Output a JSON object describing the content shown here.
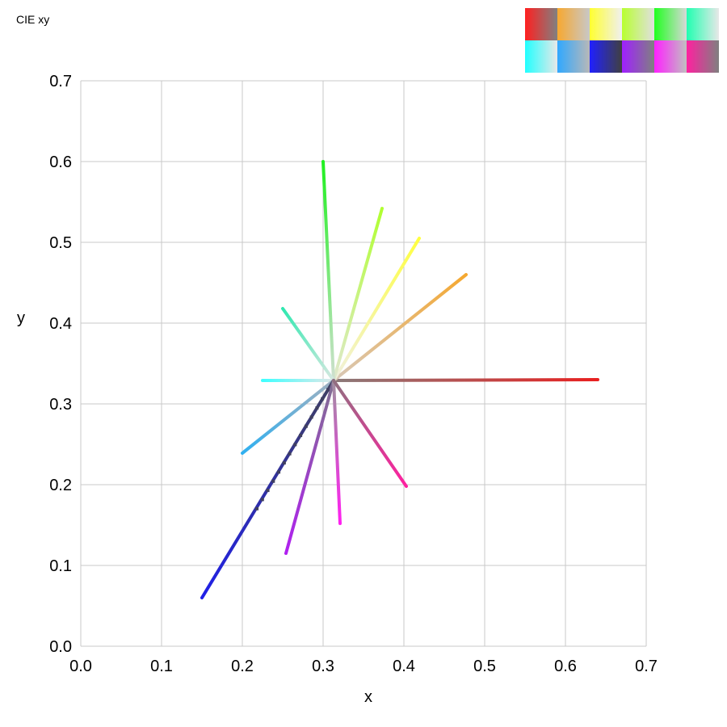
{
  "chart_data": {
    "type": "line",
    "title": "CIE xy",
    "xlabel": "x",
    "ylabel": "y",
    "xlim": [
      0.0,
      0.7
    ],
    "ylim": [
      0.0,
      0.7
    ],
    "x_ticks": [
      {
        "value": 0.0,
        "label": "0.0"
      },
      {
        "value": 0.1,
        "label": "0.1"
      },
      {
        "value": 0.2,
        "label": "0.2"
      },
      {
        "value": 0.3,
        "label": "0.3"
      },
      {
        "value": 0.4,
        "label": "0.4"
      },
      {
        "value": 0.5,
        "label": "0.5"
      },
      {
        "value": 0.6,
        "label": "0.6"
      },
      {
        "value": 0.7,
        "label": "0.7"
      }
    ],
    "y_ticks": [
      {
        "value": 0.0,
        "label": "0.0"
      },
      {
        "value": 0.1,
        "label": "0.1"
      },
      {
        "value": 0.2,
        "label": "0.2"
      },
      {
        "value": 0.3,
        "label": "0.3"
      },
      {
        "value": 0.4,
        "label": "0.4"
      },
      {
        "value": 0.5,
        "label": "0.5"
      },
      {
        "value": 0.6,
        "label": "0.6"
      },
      {
        "value": 0.7,
        "label": "0.7"
      }
    ],
    "grid": true,
    "legend": {
      "placement": "top-right",
      "rows": [
        [
          {
            "start": "#ff2020",
            "end": "#808080"
          },
          {
            "start": "#f7a830",
            "end": "#c8c8c8"
          },
          {
            "start": "#ffff30",
            "end": "#f0f0f0"
          },
          {
            "start": "#b8ff30",
            "end": "#e0e0e0"
          },
          {
            "start": "#20ff20",
            "end": "#d8d8d8"
          },
          {
            "start": "#20ffb0",
            "end": "#e8e8e8"
          }
        ],
        [
          {
            "start": "#20ffff",
            "end": "#e8e8e8"
          },
          {
            "start": "#30a8ff",
            "end": "#b8b8b8"
          },
          {
            "start": "#2020ff",
            "end": "#404040"
          },
          {
            "start": "#a020ff",
            "end": "#808080"
          },
          {
            "start": "#ff20ff",
            "end": "#c0c0c0"
          },
          {
            "start": "#ff20a0",
            "end": "#808080"
          }
        ]
      ]
    },
    "white_point": [
      0.3127,
      0.329
    ],
    "series": [
      {
        "start_color": "#e82020",
        "end_color": "#8a7a7a",
        "x": [
          0.313,
          0.64
        ],
        "y": [
          0.329,
          0.33
        ]
      },
      {
        "start_color": "#f5a830",
        "end_color": "#d8c8b8",
        "x": [
          0.313,
          0.477
        ],
        "y": [
          0.329,
          0.46
        ]
      },
      {
        "start_color": "#ffff40",
        "end_color": "#f0f0e0",
        "x": [
          0.313,
          0.419
        ],
        "y": [
          0.329,
          0.505
        ]
      },
      {
        "start_color": "#b0ff30",
        "end_color": "#e0e8d0",
        "x": [
          0.313,
          0.373
        ],
        "y": [
          0.329,
          0.542
        ]
      },
      {
        "start_color": "#20f020",
        "end_color": "#d0e0d0",
        "x": [
          0.313,
          0.3
        ],
        "y": [
          0.329,
          0.6
        ]
      },
      {
        "start_color": "#30e8b0",
        "end_color": "#d8e8e0",
        "x": [
          0.313,
          0.25
        ],
        "y": [
          0.329,
          0.418
        ]
      },
      {
        "start_color": "#40ffff",
        "end_color": "#e0e8e8",
        "x": [
          0.313,
          0.225
        ],
        "y": [
          0.329,
          0.329
        ]
      },
      {
        "start_color": "#30b0f0",
        "end_color": "#a0b0c0",
        "x": [
          0.313,
          0.2
        ],
        "y": [
          0.329,
          0.239
        ]
      },
      {
        "start_color": "#2020e8",
        "end_color": "#404060",
        "x": [
          0.313,
          0.15
        ],
        "y": [
          0.329,
          0.06
        ]
      },
      {
        "start_color": "#b020f0",
        "end_color": "#807090",
        "x": [
          0.313,
          0.254
        ],
        "y": [
          0.329,
          0.115
        ]
      },
      {
        "start_color": "#ff20f0",
        "end_color": "#a090a0",
        "x": [
          0.313,
          0.321
        ],
        "y": [
          0.329,
          0.152
        ]
      },
      {
        "start_color": "#ff20a0",
        "end_color": "#907080",
        "x": [
          0.313,
          0.403
        ],
        "y": [
          0.329,
          0.198
        ]
      }
    ]
  }
}
